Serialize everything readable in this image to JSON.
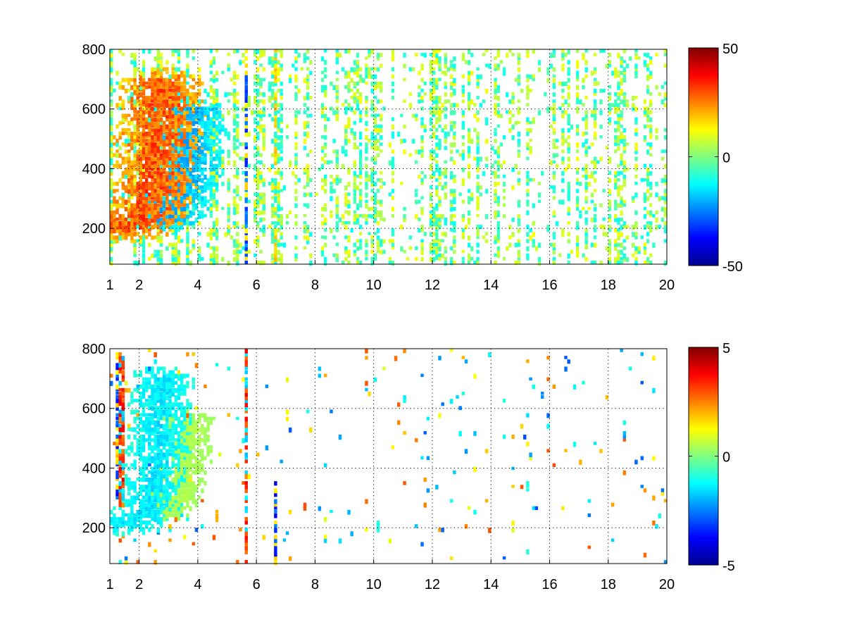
{
  "chart_data": [
    {
      "type": "heatmap",
      "title": "",
      "xlabel": "",
      "ylabel": "",
      "xlim": [
        1,
        20
      ],
      "ylim": [
        80,
        800
      ],
      "x_ticks": [
        1,
        2,
        4,
        6,
        8,
        10,
        12,
        14,
        16,
        18,
        20
      ],
      "y_ticks": [
        200,
        400,
        600,
        800
      ],
      "grid": true,
      "colormap": "jet",
      "colorbar": {
        "range": [
          -50,
          50
        ],
        "ticks": [
          -50,
          0,
          50
        ]
      },
      "features": [
        {
          "kind": "ridge",
          "value": 30,
          "path": [
            [
              1.6,
              210
            ],
            [
              2.0,
              235
            ],
            [
              2.3,
              270
            ],
            [
              2.5,
              330
            ],
            [
              2.6,
              420
            ],
            [
              2.7,
              540
            ],
            [
              2.8,
              680
            ]
          ],
          "spread": 0.14
        },
        {
          "kind": "ridge",
          "value": -20,
          "path": [
            [
              2.9,
              240
            ],
            [
              3.2,
              290
            ],
            [
              3.5,
              360
            ],
            [
              3.6,
              450
            ],
            [
              3.7,
              590
            ]
          ],
          "spread": 0.12
        },
        {
          "kind": "vertical_line",
          "x": 5.65,
          "value": -35
        },
        {
          "kind": "vertical_line",
          "x": 6.65,
          "value": 20
        }
      ],
      "scatter_density": 0.45,
      "scatter_value_range": [
        -12,
        12
      ]
    },
    {
      "type": "heatmap",
      "title": "",
      "xlabel": "",
      "ylabel": "",
      "xlim": [
        1,
        20
      ],
      "ylim": [
        80,
        800
      ],
      "x_ticks": [
        1,
        2,
        4,
        6,
        8,
        10,
        12,
        14,
        16,
        18,
        20
      ],
      "y_ticks": [
        200,
        400,
        600,
        800
      ],
      "grid": true,
      "colormap": "jet",
      "colorbar": {
        "range": [
          -5,
          5
        ],
        "ticks": [
          -5,
          0,
          5
        ]
      },
      "features": [
        {
          "kind": "ridge",
          "value": -1.5,
          "path": [
            [
              1.6,
              215
            ],
            [
              2.1,
              240
            ],
            [
              2.4,
              290
            ],
            [
              2.6,
              380
            ],
            [
              2.7,
              520
            ],
            [
              2.75,
              700
            ]
          ],
          "spread": 0.1
        },
        {
          "kind": "ridge",
          "value": 0.5,
          "path": [
            [
              3.0,
              260
            ],
            [
              3.3,
              320
            ],
            [
              3.6,
              400
            ],
            [
              3.7,
              560
            ]
          ],
          "spread": 0.08
        },
        {
          "kind": "vertical_line",
          "x": 1.25,
          "y_range": [
            300,
            790
          ],
          "value": -4
        },
        {
          "kind": "vertical_line",
          "x": 1.4,
          "y_range": [
            270,
            790
          ],
          "value": 4
        },
        {
          "kind": "vertical_line",
          "x": 5.65,
          "y_range": [
            80,
            800
          ],
          "value": 4
        },
        {
          "kind": "vertical_line",
          "x": 6.65,
          "y_range": [
            80,
            350
          ],
          "value": -4
        },
        {
          "kind": "spot",
          "x": 7.65,
          "y": 275,
          "value": 3
        },
        {
          "kind": "spot",
          "x": 4.65,
          "y": 240,
          "value": 2
        },
        {
          "kind": "spot",
          "x": 10.15,
          "y": 205,
          "value": -1
        },
        {
          "kind": "spot",
          "x": 15.25,
          "y": 340,
          "value": -1
        }
      ],
      "scatter_density": 0.04,
      "scatter_value_range": [
        -3,
        3
      ]
    }
  ]
}
